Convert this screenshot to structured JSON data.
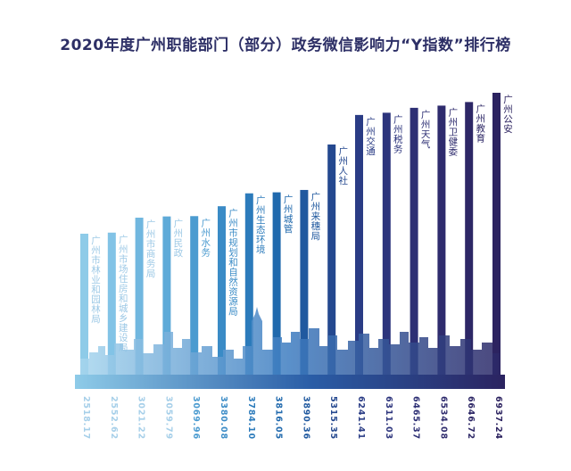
{
  "chart_data": {
    "type": "bar",
    "title": "2020年度广州职能部门（部分）政务微信影响力“Y指数”排行榜",
    "categories": [
      "广州市林业和园林局",
      "广州市场住房和城乡建设局",
      "广州市商务局",
      "广州民政",
      "广州水务",
      "广州市规划和自然资源局",
      "广州生态环境",
      "广州城管",
      "广州来穗局",
      "广州人社",
      "广州交通",
      "广州税务",
      "广州天气",
      "广州卫健委",
      "广州教育",
      "广州公安"
    ],
    "values": [
      2518.17,
      2552.62,
      3021.22,
      3059.79,
      3069.96,
      3380.08,
      3784.1,
      3816.05,
      3890.36,
      5315.35,
      6241.41,
      6311.03,
      6465.37,
      6534.08,
      6646.72,
      6937.24
    ],
    "value_labels": [
      "2518.17",
      "2552.62",
      "3021.22",
      "3059.79",
      "3069.96",
      "3380.08",
      "3784.10",
      "3816.05",
      "3890.36",
      "5315.35",
      "6241.41",
      "6311.03",
      "6465.37",
      "6534.08",
      "6646.72",
      "6937.24"
    ],
    "xlabel": "",
    "ylabel": "",
    "legend": "none",
    "grid": false,
    "colors": [
      "#8ecbe8",
      "#82c3e6",
      "#71b7df",
      "#5eaad8",
      "#4b9bd0",
      "#3a8bc6",
      "#2c7bbb",
      "#2069ad",
      "#20599f",
      "#24488f",
      "#2a3c85",
      "#2c347c",
      "#2d2f74",
      "#2e2b6d",
      "#2d2766",
      "#2c2360"
    ],
    "fade_colors": [
      "#cfe8f5",
      "#c9e4f3",
      "#c1dff1",
      "#b9daef"
    ]
  }
}
